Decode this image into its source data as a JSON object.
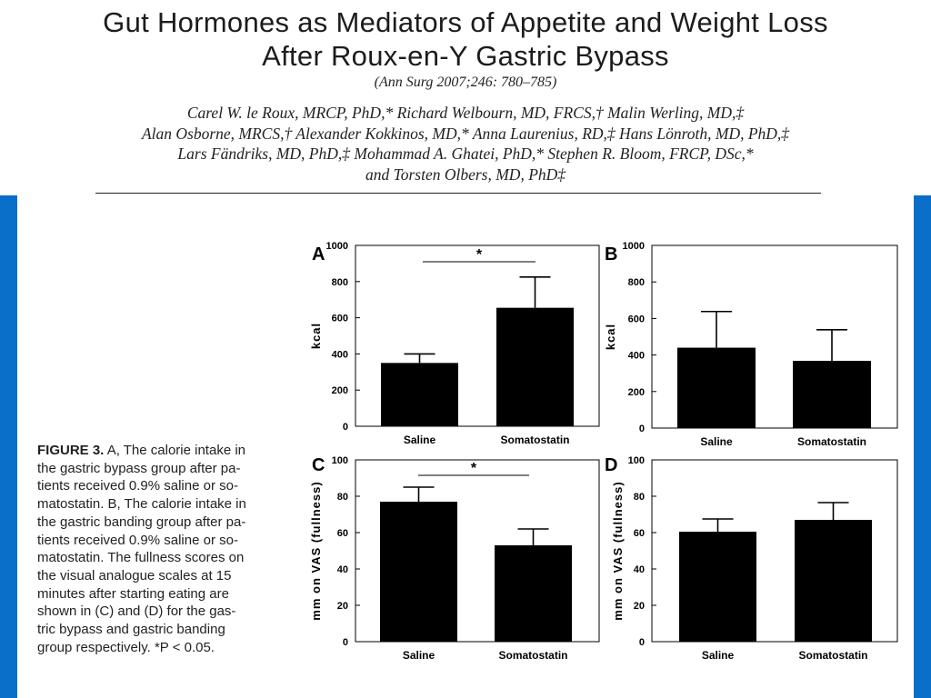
{
  "colors": {
    "accent_bar": "#0a6fc9",
    "bars": "#000000"
  },
  "header": {
    "title_lines": [
      "Gut Hormones as Mediators of Appetite and Weight Loss",
      "After Roux-en-Y Gastric Bypass"
    ],
    "citation": "(Ann Surg 2007;246: 780–785)",
    "author_lines": [
      "Carel W. le Roux, MRCP, PhD,* Richard Welbourn, MD, FRCS,† Malin Werling, MD,‡",
      "Alan Osborne, MRCS,† Alexander Kokkinos, MD,* Anna Laurenius, RD,‡ Hans Lönroth, MD, PhD,‡",
      "Lars Fändriks, MD, PhD,‡ Mohammad A. Ghatei, PhD,* Stephen R. Bloom, FRCP, DSc,*",
      "and Torsten Olbers, MD, PhD‡"
    ]
  },
  "caption": {
    "label": "FIGURE 3.",
    "lines": [
      " A, The calorie intake in",
      "the gastric bypass group after pa-",
      "tients received 0.9% saline or so-",
      "matostatin. B, The calorie intake in",
      "the gastric banding group after pa-",
      "tients received 0.9% saline or so-",
      "matostatin. The fullness scores on",
      "the visual analogue scales at 15",
      "minutes after starting eating are",
      "shown in (C) and (D) for the gas-",
      "tric bypass and gastric banding",
      "group respectively. *P < 0.05."
    ]
  },
  "chart_data": [
    {
      "panel": "A",
      "type": "bar",
      "categories": [
        "Saline",
        "Somatostatin"
      ],
      "values": [
        350,
        655
      ],
      "errors": [
        50,
        170
      ],
      "ylabel": "kcal",
      "ylim": [
        0,
        1000
      ],
      "yticks": [
        "0",
        "200",
        "400",
        "600",
        "800",
        "1000"
      ],
      "significance": "*"
    },
    {
      "panel": "B",
      "type": "bar",
      "categories": [
        "Saline",
        "Somatostatin"
      ],
      "values": [
        440,
        368
      ],
      "errors": [
        198,
        170
      ],
      "ylabel": "kcal",
      "ylim": [
        0,
        1000
      ],
      "yticks": [
        "0",
        "200",
        "400",
        "600",
        "800",
        "1000"
      ]
    },
    {
      "panel": "C",
      "type": "bar",
      "categories": [
        "Saline",
        "Somatostatin"
      ],
      "values": [
        77,
        53
      ],
      "errors": [
        8,
        9
      ],
      "ylabel": "mm on VAS (fullness)",
      "ylim": [
        0,
        100
      ],
      "yticks": [
        "0",
        "20",
        "40",
        "60",
        "80",
        "100"
      ],
      "significance": "*"
    },
    {
      "panel": "D",
      "type": "bar",
      "categories": [
        "Saline",
        "Somatostatin"
      ],
      "values": [
        60.5,
        67
      ],
      "errors": [
        7,
        9.5
      ],
      "ylabel": "mm on VAS (fullness)",
      "ylim": [
        0,
        100
      ],
      "yticks": [
        "0",
        "20",
        "40",
        "60",
        "80",
        "100"
      ]
    }
  ]
}
